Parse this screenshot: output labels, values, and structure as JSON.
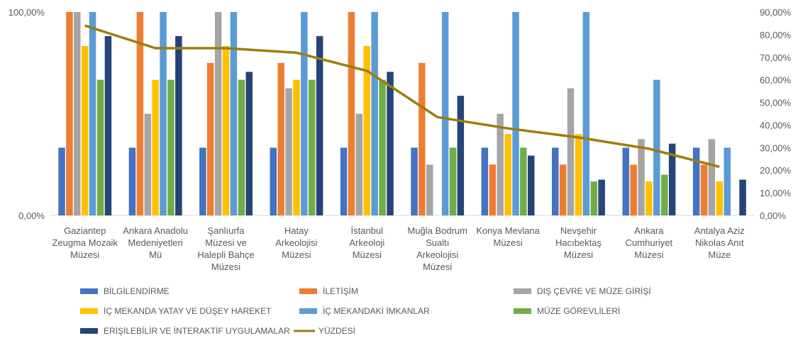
{
  "chart_data": {
    "type": "bar",
    "categories": [
      [
        "Gaziantep",
        "Zeugma Mozaik",
        "Müzesi"
      ],
      [
        "Ankara Anadolu",
        "Medeniyetleri",
        "Mü"
      ],
      [
        "Şanlıurfa",
        "Müzesi ve",
        "Halepli Bahçe",
        "Müzesi"
      ],
      [
        "Hatay",
        "Arkeolojisi",
        "Müzesi"
      ],
      [
        "İstanbul",
        "Arkeoloji",
        "Müzesi"
      ],
      [
        "Muğla Bodrum",
        "Sualtı",
        "Arkeolojisi",
        "Müzesi"
      ],
      [
        "Konya Mevlana",
        "Müzesi"
      ],
      [
        "Nevşehir",
        "Hacıbektaş",
        "Müzesi"
      ],
      [
        "Ankara",
        "Cumhuriyet",
        "Müzesi"
      ],
      [
        "Antalya Aziz",
        "Nikolas Anıt",
        "Müze"
      ]
    ],
    "series": [
      {
        "name": "BİLGİLENDİRME",
        "color": "#4472C4",
        "values": [
          0.333,
          0.333,
          0.333,
          0.333,
          0.333,
          0.333,
          0.333,
          0.333,
          0.333,
          0.333
        ]
      },
      {
        "name": "İLETİŞİM",
        "color": "#ED7D31",
        "values": [
          1.0,
          1.0,
          0.75,
          0.75,
          1.0,
          0.75,
          0.25,
          0.25,
          0.25,
          0.25
        ]
      },
      {
        "name": "DIŞ ÇEVRE VE MÜZE GİRİŞİ",
        "color": "#A5A5A5",
        "values": [
          1.0,
          0.5,
          1.0,
          0.625,
          0.5,
          0.25,
          0.5,
          0.625,
          0.375,
          0.375
        ]
      },
      {
        "name": "İÇ MEKANDA YATAY VE DÜŞEY HAREKET",
        "color": "#FFC000",
        "values": [
          0.833,
          0.667,
          0.833,
          0.667,
          0.833,
          0,
          0.4,
          0.4,
          0.167,
          0.167
        ]
      },
      {
        "name": "İÇ MEKANDAKİ İMKANLAR",
        "color": "#5B9BD5",
        "values": [
          1.0,
          1.0,
          1.0,
          1.0,
          1.0,
          1.0,
          1.0,
          1.0,
          0.667,
          0.333
        ]
      },
      {
        "name": "MÜZE GÖREVLİLERİ",
        "color": "#70AD47",
        "values": [
          0.667,
          0.667,
          0.667,
          0.667,
          0.667,
          0.333,
          0.333,
          0.167,
          0.2,
          0
        ]
      },
      {
        "name": "ERİŞİLEBİLİR VE İNTERAKTİF UYGULAMALAR",
        "color": "#264478",
        "values": [
          0.882,
          0.882,
          0.706,
          0.882,
          0.706,
          0.588,
          0.294,
          0.176,
          0.353,
          0.176
        ]
      }
    ],
    "line_series": {
      "name": "YÜZDESİ",
      "color": "#9E7C0C",
      "values": [
        0.84,
        0.74,
        0.74,
        0.72,
        0.64,
        0.435,
        0.385,
        0.345,
        0.295,
        0.215
      ]
    },
    "y_left": {
      "min": 0,
      "max": 1.0,
      "ticks": [
        "0,00%",
        "100,00%"
      ]
    },
    "y_right": {
      "min": 0,
      "max": 0.9,
      "ticks": [
        "0,00%",
        "10,00%",
        "20,00%",
        "30,00%",
        "40,00%",
        "50,00%",
        "60,00%",
        "70,00%",
        "80,00%",
        "90,00%"
      ]
    },
    "grid": false,
    "legend_position": "bottom",
    "legend": [
      "BİLGİLENDİRME",
      "İLETİŞİM",
      "DIŞ ÇEVRE VE MÜZE GİRİŞİ",
      "İÇ MEKANDA YATAY VE DÜŞEY HAREKET",
      "İÇ MEKANDAKİ İMKANLAR",
      "MÜZE GÖREVLİLERİ",
      "ERİŞİLEBİLİR VE İNTERAKTİF UYGULAMALAR",
      "YÜZDESİ"
    ]
  }
}
